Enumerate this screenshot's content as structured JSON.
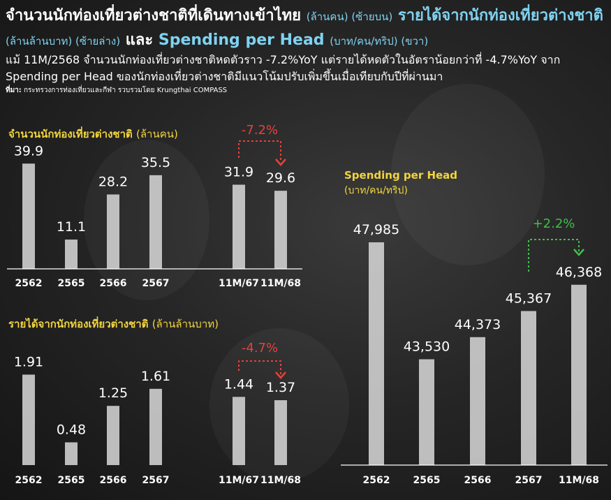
{
  "header": {
    "title_main": "จำนวนนักท่องเที่ยวต่างชาติที่เดินทางเข้าไทย",
    "title_unit1": "(ล้านคน) (ซ้ายบน)",
    "title_part2": "รายได้จากนักท่องเที่ยวต่างชาติ",
    "title_unit2": "(ล้านล้านบาท) (ซ้ายล่าง)",
    "title_and": "และ",
    "title_part3": "Spending per Head",
    "title_unit3": "(บาท/คน/ทริป) (ขวา)",
    "subtitle": "แม้ 11M/2568 จำนวนนักท่องเที่ยวต่างชาติหดตัวราว -7.2%YoY แต่รายได้หดตัวในอัตราน้อยกว่าที่ -4.7%YoY จาก Spending per Head ของนักท่องเที่ยวต่างชาติมีแนวโน้มปรับเพิ่มขึ้นเมื่อเทียบกับปีที่ผ่านมา",
    "source_label": "ที่มา:",
    "source_text": "กระทรวงการท่องเที่ยวและกีฬา รวบรวมโดย Krungthai COMPASS"
  },
  "colors": {
    "bar": "#d9d9d9",
    "title_yellow": "#f2d53c",
    "title_blue": "#7fd2f0",
    "negative": "#e8403a",
    "positive": "#3fbf4a"
  },
  "chart_data": [
    {
      "type": "bar",
      "title": "จำนวนนักท่องเที่ยวต่างชาติ",
      "unit": "(ล้านคน)",
      "categories": [
        "2562",
        "2565",
        "2566",
        "2567",
        "11M/67",
        "11M/68"
      ],
      "values": [
        39.9,
        11.1,
        28.2,
        35.5,
        31.9,
        29.6
      ],
      "labels": [
        "39.9",
        "11.1",
        "28.2",
        "35.5",
        "31.9",
        "29.6"
      ],
      "annotation": {
        "text": "-7.2%",
        "from": 4,
        "to": 5,
        "direction": "down"
      },
      "ylim": [
        0,
        45
      ]
    },
    {
      "type": "bar",
      "title": "รายได้จากนักท่องเที่ยวต่างชาติ",
      "unit": "(ล้านล้านบาท)",
      "categories": [
        "2562",
        "2565",
        "2566",
        "2567",
        "11M/67",
        "11M/68"
      ],
      "values": [
        1.91,
        0.48,
        1.25,
        1.61,
        1.44,
        1.37
      ],
      "labels": [
        "1.91",
        "0.48",
        "1.25",
        "1.61",
        "1.44",
        "1.37"
      ],
      "annotation": {
        "text": "-4.7%",
        "from": 4,
        "to": 5,
        "direction": "down"
      },
      "ylim": [
        0,
        2.3
      ]
    },
    {
      "type": "bar",
      "title": "Spending per Head",
      "unit": "(บาท/คน/ทริป)",
      "categories": [
        "2562",
        "2565",
        "2566",
        "2567",
        "11M/68"
      ],
      "values": [
        47985,
        43530,
        44373,
        45367,
        46368
      ],
      "labels": [
        "47,985",
        "43,530",
        "44,373",
        "45,367",
        "46,368"
      ],
      "annotation": {
        "text": "+2.2%",
        "from": 3,
        "to": 4,
        "direction": "up"
      },
      "ylim": [
        39500,
        49500
      ]
    }
  ]
}
